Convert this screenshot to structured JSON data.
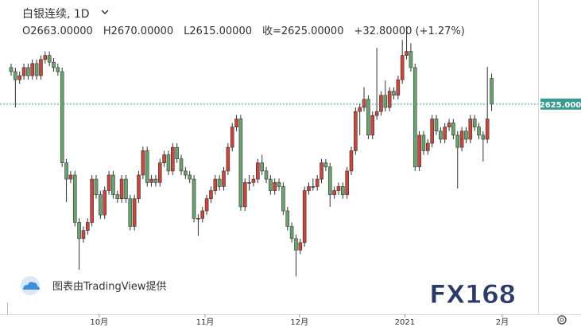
{
  "header": {
    "symbol": "白银连续, 1D",
    "ohlc": [
      "O2663.00000",
      "H2670.00000",
      "L2615.00000",
      "收=2625.00000",
      "+32.80000 (+1.27%)"
    ],
    "credit": "图表由TradingView提供",
    "logo": "FX168"
  },
  "chart_data": {
    "type": "candlestick",
    "up_color": "#c9463d",
    "down_color": "#6aa36f",
    "ylim": [
      2314,
      2779
    ],
    "xticks": [
      {
        "value": 20.7,
        "label": "10月"
      },
      {
        "value": 45.6,
        "label": "11月"
      },
      {
        "value": 67.8,
        "label": "12月"
      },
      {
        "value": 92.6,
        "label": "2021"
      },
      {
        "value": 115.5,
        "label": "2月"
      }
    ],
    "last_price": {
      "value": 2625,
      "label": "2625.000"
    },
    "open": [
      2679,
      2673,
      2661,
      2667,
      2679,
      2667,
      2685,
      2667,
      2691,
      2697,
      2687,
      2679,
      2673,
      2538,
      2514,
      2520,
      2450,
      2426,
      2438,
      2450,
      2514,
      2491,
      2461,
      2497,
      2520,
      2491,
      2485,
      2514,
      2485,
      2444,
      2485,
      2520,
      2556,
      2509,
      2514,
      2509,
      2538,
      2550,
      2526,
      2561,
      2544,
      2526,
      2520,
      2514,
      2456,
      2456,
      2467,
      2485,
      2497,
      2514,
      2503,
      2526,
      2561,
      2591,
      2603,
      2473,
      2509,
      2509,
      2514,
      2538,
      2526,
      2514,
      2497,
      2509,
      2503,
      2467,
      2444,
      2426,
      2409,
      2420,
      2497,
      2503,
      2503,
      2514,
      2538,
      2532,
      2491,
      2497,
      2503,
      2491,
      2526,
      2556,
      2614,
      2620,
      2632,
      2579,
      2608,
      2614,
      2638,
      2620,
      2644,
      2638,
      2661,
      2697,
      2703,
      2679,
      2532,
      2579,
      2556,
      2567,
      2603,
      2585,
      2573,
      2591,
      2597,
      2579,
      2561,
      2585,
      2573,
      2603,
      2591,
      2579,
      2573,
      2663
    ],
    "high": [
      2685,
      2679,
      2673,
      2685,
      2685,
      2691,
      2691,
      2697,
      2703,
      2703,
      2693,
      2685,
      2679,
      2544,
      2526,
      2526,
      2456,
      2444,
      2456,
      2520,
      2520,
      2497,
      2503,
      2526,
      2526,
      2497,
      2520,
      2520,
      2491,
      2491,
      2526,
      2562,
      2562,
      2520,
      2520,
      2544,
      2556,
      2556,
      2567,
      2567,
      2550,
      2532,
      2526,
      2520,
      2462,
      2473,
      2491,
      2503,
      2520,
      2520,
      2532,
      2567,
      2597,
      2609,
      2609,
      2515,
      2520,
      2520,
      2544,
      2550,
      2532,
      2520,
      2515,
      2515,
      2509,
      2473,
      2450,
      2432,
      2426,
      2503,
      2509,
      2515,
      2520,
      2544,
      2544,
      2538,
      2503,
      2509,
      2509,
      2532,
      2562,
      2620,
      2626,
      2650,
      2638,
      2614,
      2708,
      2644,
      2660,
      2650,
      2650,
      2667,
      2720,
      2740,
      2715,
      2685,
      2585,
      2585,
      2573,
      2609,
      2609,
      2591,
      2597,
      2603,
      2603,
      2585,
      2591,
      2591,
      2609,
      2609,
      2597,
      2585,
      2680,
      2670
    ],
    "low": [
      2667,
      2620,
      2655,
      2661,
      2661,
      2661,
      2661,
      2661,
      2685,
      2681,
      2673,
      2667,
      2532,
      2480,
      2508,
      2444,
      2380,
      2420,
      2432,
      2444,
      2485,
      2455,
      2455,
      2491,
      2485,
      2479,
      2479,
      2479,
      2438,
      2438,
      2479,
      2514,
      2503,
      2503,
      2503,
      2503,
      2532,
      2520,
      2520,
      2538,
      2520,
      2514,
      2508,
      2450,
      2430,
      2450,
      2461,
      2479,
      2491,
      2497,
      2497,
      2520,
      2555,
      2585,
      2467,
      2467,
      2497,
      2503,
      2508,
      2520,
      2508,
      2491,
      2491,
      2497,
      2461,
      2438,
      2420,
      2370,
      2403,
      2414,
      2491,
      2497,
      2497,
      2508,
      2526,
      2473,
      2485,
      2491,
      2485,
      2485,
      2520,
      2550,
      2579,
      2614,
      2573,
      2573,
      2602,
      2608,
      2614,
      2614,
      2632,
      2632,
      2655,
      2691,
      2673,
      2526,
      2526,
      2550,
      2550,
      2561,
      2579,
      2567,
      2567,
      2585,
      2573,
      2500,
      2555,
      2567,
      2567,
      2585,
      2573,
      2540,
      2567,
      2615
    ],
    "close": [
      2673,
      2661,
      2667,
      2679,
      2667,
      2685,
      2667,
      2691,
      2697,
      2687,
      2679,
      2673,
      2538,
      2514,
      2520,
      2450,
      2426,
      2438,
      2450,
      2514,
      2491,
      2461,
      2497,
      2520,
      2491,
      2485,
      2514,
      2485,
      2444,
      2485,
      2520,
      2556,
      2509,
      2514,
      2509,
      2538,
      2550,
      2526,
      2561,
      2544,
      2526,
      2520,
      2514,
      2456,
      2456,
      2467,
      2485,
      2497,
      2514,
      2503,
      2526,
      2561,
      2591,
      2603,
      2473,
      2509,
      2509,
      2514,
      2538,
      2526,
      2514,
      2497,
      2509,
      2503,
      2467,
      2444,
      2426,
      2409,
      2420,
      2497,
      2503,
      2503,
      2514,
      2538,
      2532,
      2491,
      2497,
      2503,
      2491,
      2526,
      2556,
      2614,
      2620,
      2632,
      2579,
      2608,
      2614,
      2638,
      2620,
      2644,
      2638,
      2661,
      2697,
      2703,
      2679,
      2532,
      2579,
      2556,
      2567,
      2603,
      2585,
      2573,
      2591,
      2597,
      2579,
      2561,
      2585,
      2573,
      2603,
      2591,
      2579,
      2573,
      2603,
      2625
    ]
  }
}
